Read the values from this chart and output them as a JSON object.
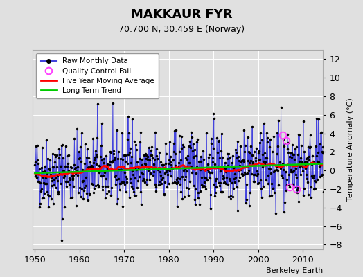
{
  "title": "MAKKAUR FYR",
  "subtitle": "70.700 N, 30.459 E (Norway)",
  "ylabel": "Temperature Anomaly (°C)",
  "watermark": "Berkeley Earth",
  "xlim": [
    1949.5,
    2014.5
  ],
  "ylim": [
    -8.5,
    13
  ],
  "yticks": [
    -8,
    -6,
    -4,
    -2,
    0,
    2,
    4,
    6,
    8,
    10,
    12
  ],
  "xticks": [
    1950,
    1960,
    1970,
    1980,
    1990,
    2000,
    2010
  ],
  "bg_color": "#e0e0e0",
  "plot_bg": "#e0e0e0",
  "raw_line_color": "#4444dd",
  "raw_dot_color": "#000000",
  "qc_fail_color": "#ff44ff",
  "moving_avg_color": "#ff0000",
  "trend_color": "#00cc00",
  "seed": 42,
  "n_years": 65,
  "start_year": 1950
}
